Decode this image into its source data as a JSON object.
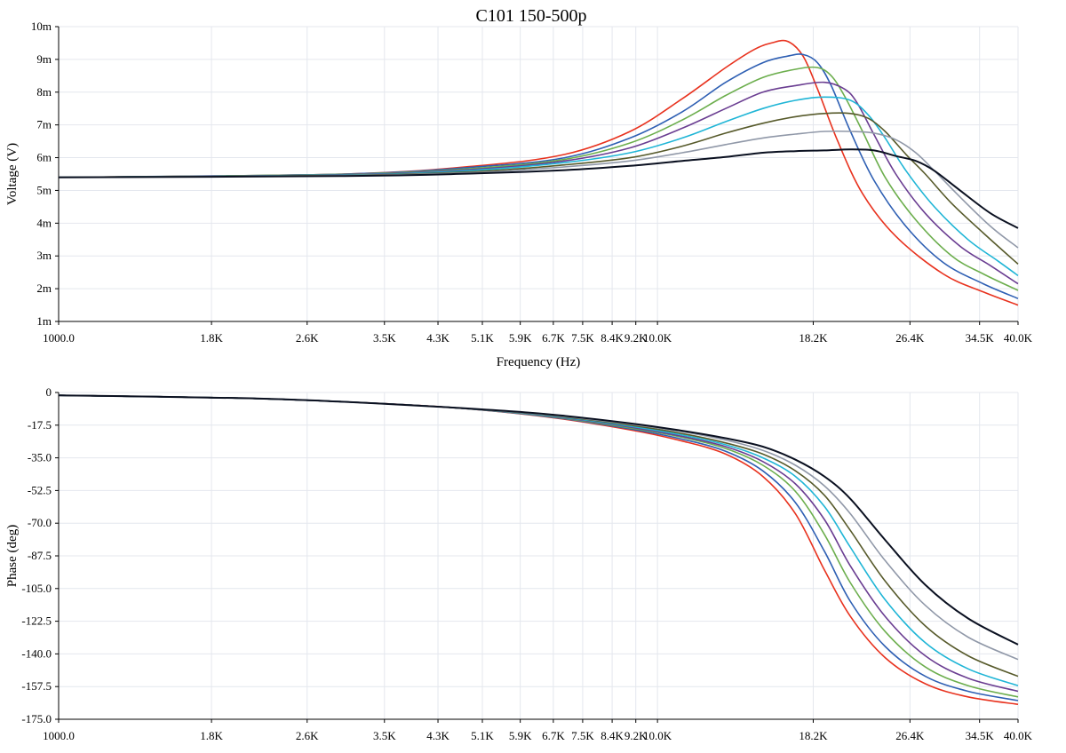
{
  "title": "C101 150-500p",
  "chart_data": [
    {
      "type": "line",
      "x_scale": "log",
      "xlim": [
        1000,
        40000
      ],
      "xlabel": "Frequency (Hz)",
      "ylabel": "Voltage (V)",
      "ylim": [
        1,
        10
      ],
      "grid": true,
      "x_ticks": [
        {
          "value": 1000,
          "label": "1000.0"
        },
        {
          "value": 1800,
          "label": "1.8K"
        },
        {
          "value": 2600,
          "label": "2.6K"
        },
        {
          "value": 3500,
          "label": "3.5K"
        },
        {
          "value": 4300,
          "label": "4.3K"
        },
        {
          "value": 5100,
          "label": "5.1K"
        },
        {
          "value": 5900,
          "label": "5.9K"
        },
        {
          "value": 6700,
          "label": "6.7K"
        },
        {
          "value": 7500,
          "label": "7.5K"
        },
        {
          "value": 8400,
          "label": "8.4K"
        },
        {
          "value": 9200,
          "label": "9.2K"
        },
        {
          "value": 10000,
          "label": "10.0K"
        },
        {
          "value": 18200,
          "label": "18.2K"
        },
        {
          "value": 26400,
          "label": "26.4K"
        },
        {
          "value": 34500,
          "label": "34.5K"
        },
        {
          "value": 40000,
          "label": "40.0K"
        }
      ],
      "y_ticks": [
        {
          "value": 1,
          "label": "1m"
        },
        {
          "value": 2,
          "label": "2m"
        },
        {
          "value": 3,
          "label": "3m"
        },
        {
          "value": 4,
          "label": "4m"
        },
        {
          "value": 5,
          "label": "5m"
        },
        {
          "value": 6,
          "label": "6m"
        },
        {
          "value": 7,
          "label": "7m"
        },
        {
          "value": 8,
          "label": "8m"
        },
        {
          "value": 9,
          "label": "9m"
        },
        {
          "value": 10,
          "label": "10m"
        }
      ],
      "series": [
        {
          "color": "#e8321e",
          "x": [
            1000,
            3000,
            5000,
            7000,
            9000,
            11000,
            13000,
            14500,
            15500,
            16500,
            17500,
            18500,
            20000,
            22000,
            25000,
            30000,
            35000,
            40000
          ],
          "y": [
            5.4,
            5.5,
            5.75,
            6.1,
            6.8,
            7.8,
            8.75,
            9.3,
            9.5,
            9.55,
            9.1,
            8.1,
            6.5,
            4.9,
            3.6,
            2.45,
            1.9,
            1.5
          ]
        },
        {
          "color": "#2e5fb3",
          "x": [
            1000,
            3000,
            5000,
            7000,
            9000,
            11000,
            13000,
            15000,
            16500,
            17500,
            18500,
            19500,
            21000,
            23000,
            26000,
            30000,
            35000,
            40000
          ],
          "y": [
            5.4,
            5.5,
            5.72,
            6.0,
            6.6,
            7.4,
            8.3,
            8.9,
            9.1,
            9.15,
            8.9,
            8.2,
            6.8,
            5.3,
            3.9,
            2.8,
            2.15,
            1.7
          ]
        },
        {
          "color": "#6cae4d",
          "x": [
            1000,
            3000,
            5000,
            7000,
            9000,
            11000,
            13000,
            15000,
            17000,
            18500,
            19500,
            20500,
            22000,
            24000,
            27000,
            31000,
            35000,
            40000
          ],
          "y": [
            5.4,
            5.49,
            5.68,
            5.95,
            6.45,
            7.15,
            7.9,
            8.45,
            8.7,
            8.75,
            8.5,
            7.9,
            6.8,
            5.4,
            4.1,
            3.0,
            2.45,
            1.95
          ]
        },
        {
          "color": "#6a3d91",
          "x": [
            1000,
            3000,
            5000,
            7000,
            9000,
            11000,
            13000,
            15000,
            17000,
            19000,
            20500,
            21500,
            23000,
            25000,
            28000,
            32000,
            36000,
            40000
          ],
          "y": [
            5.4,
            5.48,
            5.65,
            5.9,
            6.3,
            6.9,
            7.5,
            8.0,
            8.2,
            8.3,
            8.1,
            7.7,
            6.7,
            5.5,
            4.3,
            3.3,
            2.7,
            2.15
          ]
        },
        {
          "color": "#1fb5d6",
          "x": [
            1000,
            3000,
            5000,
            7000,
            9000,
            11000,
            13000,
            15000,
            17000,
            19000,
            21000,
            22500,
            24000,
            26000,
            29000,
            33000,
            37000,
            40000
          ],
          "y": [
            5.4,
            5.47,
            5.62,
            5.85,
            6.15,
            6.6,
            7.1,
            7.5,
            7.75,
            7.85,
            7.75,
            7.3,
            6.6,
            5.6,
            4.5,
            3.5,
            2.85,
            2.4
          ]
        },
        {
          "color": "#575a2b",
          "x": [
            1000,
            3000,
            5000,
            7000,
            9000,
            11000,
            13000,
            15000,
            17000,
            19000,
            21000,
            22500,
            24000,
            26000,
            28000,
            31000,
            35000,
            40000
          ],
          "y": [
            5.4,
            5.46,
            5.58,
            5.78,
            6.0,
            6.35,
            6.75,
            7.05,
            7.25,
            7.35,
            7.35,
            7.2,
            6.8,
            6.1,
            5.5,
            4.6,
            3.7,
            2.75
          ]
        },
        {
          "color": "#9098a8",
          "x": [
            1000,
            3000,
            5000,
            7000,
            9000,
            11000,
            13000,
            15000,
            17000,
            19000,
            21000,
            23000,
            25000,
            27000,
            29000,
            32000,
            36000,
            40000
          ],
          "y": [
            5.4,
            5.45,
            5.55,
            5.72,
            5.9,
            6.15,
            6.4,
            6.6,
            6.72,
            6.8,
            6.8,
            6.75,
            6.55,
            6.15,
            5.6,
            4.8,
            3.9,
            3.25
          ]
        },
        {
          "color": "#0a1020",
          "x": [
            1000,
            3000,
            5000,
            7000,
            9000,
            11000,
            13000,
            15000,
            17000,
            19000,
            21000,
            23000,
            25000,
            27000,
            29000,
            32000,
            36000,
            40000
          ],
          "y": [
            5.4,
            5.44,
            5.52,
            5.62,
            5.75,
            5.9,
            6.02,
            6.15,
            6.2,
            6.22,
            6.25,
            6.22,
            6.05,
            5.9,
            5.6,
            5.0,
            4.3,
            3.85
          ]
        }
      ]
    },
    {
      "type": "line",
      "x_scale": "log",
      "xlim": [
        1000,
        40000
      ],
      "xlabel": "",
      "ylabel": "Phase (deg)",
      "ylim": [
        -175,
        0
      ],
      "grid": true,
      "x_ticks": [
        {
          "value": 1000,
          "label": "1000.0"
        },
        {
          "value": 1800,
          "label": "1.8K"
        },
        {
          "value": 2600,
          "label": "2.6K"
        },
        {
          "value": 3500,
          "label": "3.5K"
        },
        {
          "value": 4300,
          "label": "4.3K"
        },
        {
          "value": 5100,
          "label": "5.1K"
        },
        {
          "value": 5900,
          "label": "5.9K"
        },
        {
          "value": 6700,
          "label": "6.7K"
        },
        {
          "value": 7500,
          "label": "7.5K"
        },
        {
          "value": 8400,
          "label": "8.4K"
        },
        {
          "value": 9200,
          "label": "9.2K"
        },
        {
          "value": 10000,
          "label": "10.0K"
        },
        {
          "value": 18200,
          "label": "18.2K"
        },
        {
          "value": 26400,
          "label": "26.4K"
        },
        {
          "value": 34500,
          "label": "34.5K"
        },
        {
          "value": 40000,
          "label": "40.0K"
        }
      ],
      "y_ticks": [
        {
          "value": 0,
          "label": "0"
        },
        {
          "value": -17.5,
          "label": "-17.5"
        },
        {
          "value": -35,
          "label": "-35.0"
        },
        {
          "value": -52.5,
          "label": "-52.5"
        },
        {
          "value": -70,
          "label": "-70.0"
        },
        {
          "value": -87.5,
          "label": "-87.5"
        },
        {
          "value": -105,
          "label": "-105.0"
        },
        {
          "value": -122.5,
          "label": "-122.5"
        },
        {
          "value": -140,
          "label": "-140.0"
        },
        {
          "value": -157.5,
          "label": "-157.5"
        },
        {
          "value": -175,
          "label": "-175.0"
        }
      ],
      "series": [
        {
          "color": "#e8321e",
          "x": [
            1000,
            2000,
            3000,
            4500,
            6500,
            9000,
            11000,
            13000,
            15000,
            17000,
            19000,
            21000,
            24000,
            28000,
            33000,
            40000
          ],
          "y": [
            -1.5,
            -3,
            -5,
            -8,
            -13,
            -20,
            -26,
            -33,
            -45,
            -65,
            -95,
            -120,
            -142,
            -156,
            -163,
            -167
          ]
        },
        {
          "color": "#2e5fb3",
          "x": [
            1000,
            2000,
            3000,
            4500,
            6500,
            9000,
            11000,
            13000,
            15000,
            17000,
            19000,
            21000,
            24000,
            28000,
            33000,
            40000
          ],
          "y": [
            -1.5,
            -3,
            -5,
            -8,
            -12.8,
            -19.5,
            -25,
            -31.5,
            -42,
            -59,
            -85,
            -112,
            -136,
            -152,
            -160,
            -165
          ]
        },
        {
          "color": "#6cae4d",
          "x": [
            1000,
            2000,
            3000,
            4500,
            6500,
            9000,
            11000,
            13000,
            15000,
            17000,
            19000,
            21000,
            24000,
            28000,
            33000,
            40000
          ],
          "y": [
            -1.5,
            -3,
            -5,
            -8,
            -12.6,
            -19,
            -24,
            -30,
            -39,
            -53,
            -76,
            -102,
            -128,
            -147,
            -157,
            -163
          ]
        },
        {
          "color": "#6a3d91",
          "x": [
            1000,
            2000,
            3000,
            4500,
            6500,
            9000,
            11000,
            13000,
            15000,
            17000,
            19000,
            21000,
            24000,
            28000,
            33000,
            40000
          ],
          "y": [
            -1.5,
            -3,
            -5,
            -8,
            -12.4,
            -18.5,
            -23.5,
            -29,
            -37,
            -49,
            -68,
            -93,
            -120,
            -141,
            -153,
            -160
          ]
        },
        {
          "color": "#1fb5d6",
          "x": [
            1000,
            2000,
            3000,
            4500,
            6500,
            9000,
            11000,
            13000,
            15000,
            17000,
            19000,
            21000,
            24000,
            28000,
            33000,
            40000
          ],
          "y": [
            -1.5,
            -3,
            -5,
            -8,
            -12.2,
            -18,
            -22.8,
            -28,
            -35,
            -45,
            -61,
            -83,
            -111,
            -134,
            -148,
            -157
          ]
        },
        {
          "color": "#575a2b",
          "x": [
            1000,
            2000,
            3000,
            4500,
            6500,
            9000,
            11000,
            13000,
            15000,
            17000,
            19000,
            21000,
            24000,
            28000,
            33000,
            40000
          ],
          "y": [
            -1.5,
            -3,
            -5,
            -8,
            -12,
            -17.5,
            -22,
            -27,
            -33,
            -42,
            -55,
            -74,
            -101,
            -125,
            -141,
            -152
          ]
        },
        {
          "color": "#9098a8",
          "x": [
            1000,
            2000,
            3000,
            4500,
            6500,
            9000,
            11000,
            13000,
            15000,
            17000,
            19000,
            21000,
            24000,
            28000,
            33000,
            40000
          ],
          "y": [
            -1.5,
            -3,
            -5,
            -8,
            -11.8,
            -17,
            -21,
            -25.5,
            -31,
            -39,
            -50,
            -65,
            -90,
            -114,
            -131,
            -143
          ]
        },
        {
          "color": "#0a1020",
          "x": [
            1000,
            2000,
            3000,
            4500,
            6500,
            9000,
            11000,
            13000,
            15000,
            17000,
            19000,
            21000,
            24000,
            28000,
            33000,
            40000
          ],
          "y": [
            -1.5,
            -3,
            -5,
            -8,
            -11.5,
            -16.5,
            -20.5,
            -24.5,
            -29,
            -36,
            -45,
            -57,
            -79,
            -103,
            -121,
            -135
          ]
        }
      ]
    }
  ]
}
